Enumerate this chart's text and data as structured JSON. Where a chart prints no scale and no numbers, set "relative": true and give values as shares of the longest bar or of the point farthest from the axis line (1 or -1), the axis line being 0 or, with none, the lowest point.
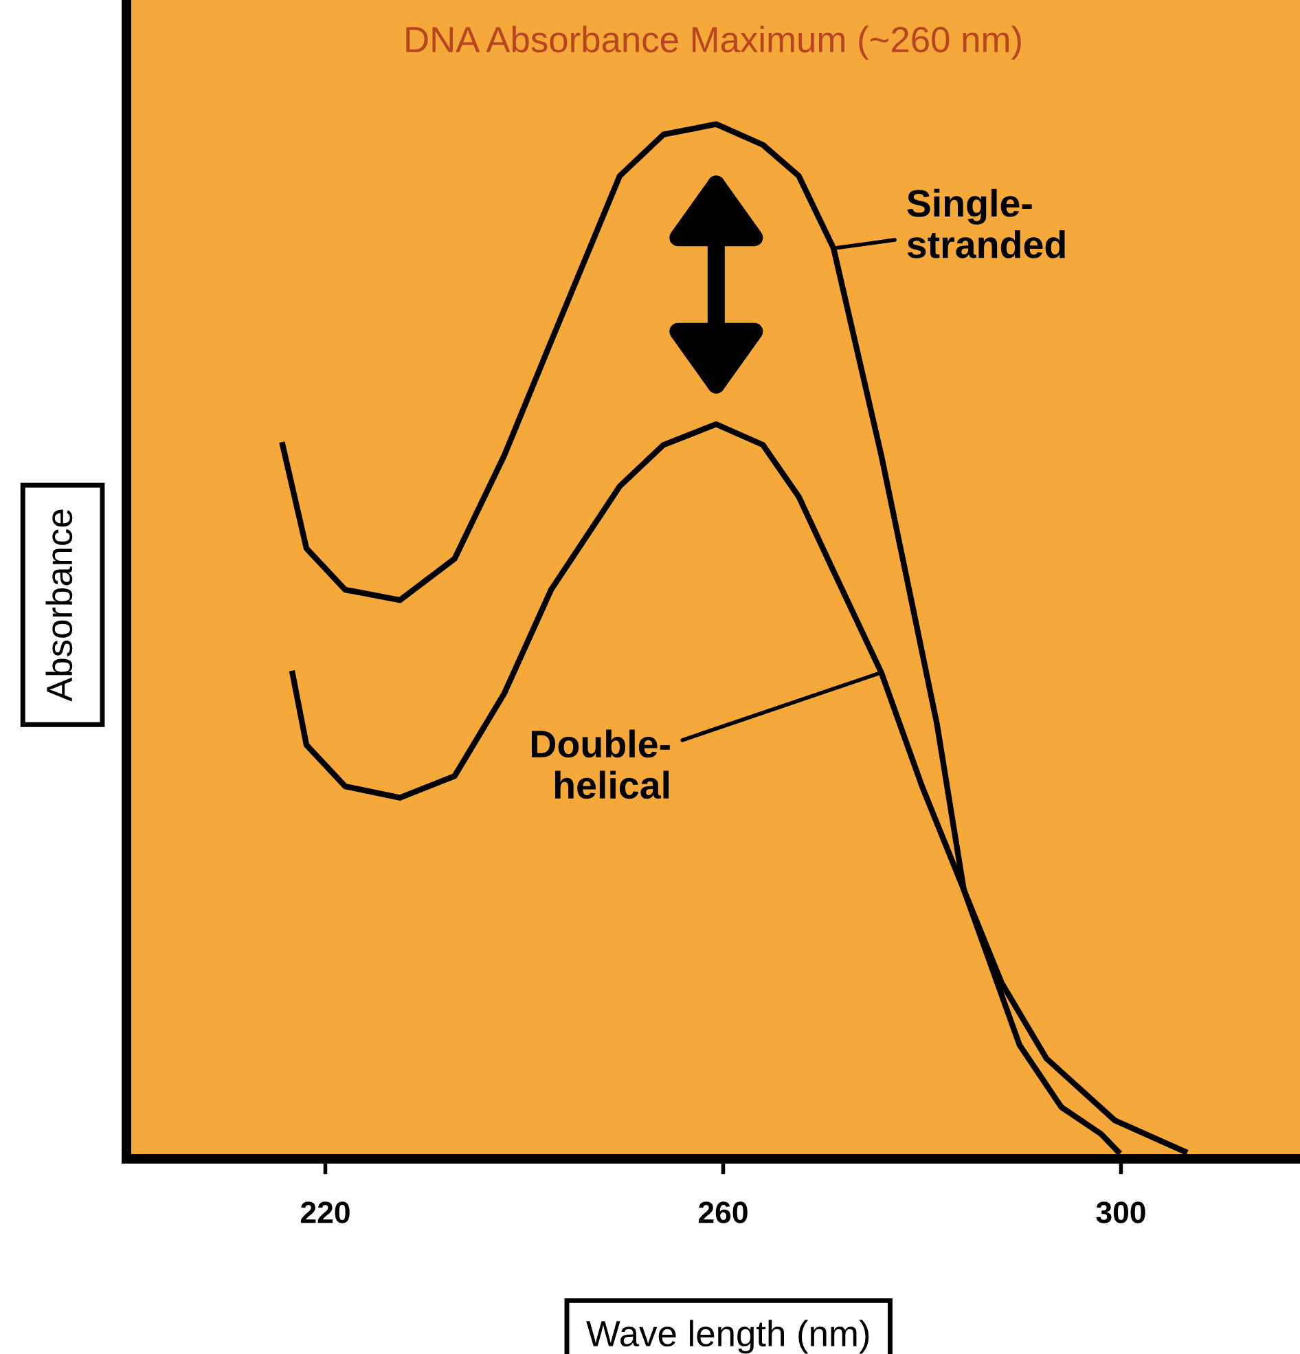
{
  "chart_data": {
    "type": "line",
    "title": "DNA Absorbance Maximum (~260 nm)",
    "xlabel": "Wave length (nm)",
    "ylabel": "Absorbance",
    "relative": true,
    "xlim": [
      200,
      318
    ],
    "xticks": [
      220,
      260,
      300
    ],
    "grid": false,
    "tick_labels": "x",
    "line_style": "solid",
    "marker": "none",
    "series": [
      {
        "color": "#000000",
        "x": [
          215.7,
          218.1,
          222.0,
          227.5,
          233.0,
          238.0,
          242.7,
          249.6,
          254.0,
          259.3,
          264.0,
          267.6,
          271.1,
          275.9,
          281.5,
          284.2,
          289.8,
          294.0,
          298.0,
          299.7
        ],
        "values": [
          0.69,
          0.59,
          0.55,
          0.54,
          0.58,
          0.68,
          0.79,
          0.95,
          0.99,
          1.0,
          0.98,
          0.95,
          0.88,
          0.68,
          0.42,
          0.26,
          0.11,
          0.05,
          0.024,
          0.007
        ]
      },
      {
        "color": "#000000",
        "x": [
          216.7,
          218.1,
          222.0,
          227.5,
          233.0,
          238.0,
          242.7,
          249.6,
          254.0,
          259.3,
          264.0,
          267.6,
          271.0,
          275.9,
          280.0,
          284.2,
          288.0,
          292.5,
          299.4,
          306.4
        ],
        "values": [
          0.469,
          0.4,
          0.36,
          0.349,
          0.37,
          0.45,
          0.55,
          0.65,
          0.69,
          0.71,
          0.69,
          0.64,
          0.57,
          0.47,
          0.36,
          0.26,
          0.17,
          0.097,
          0.037,
          0.007
        ]
      }
    ],
    "annotations": [
      {
        "text": "Single-\nstranded",
        "x": 271.1,
        "y": 0.88
      },
      {
        "text": "Double-\nhelical",
        "x": 275.9,
        "y": 0.47
      }
    ]
  }
}
